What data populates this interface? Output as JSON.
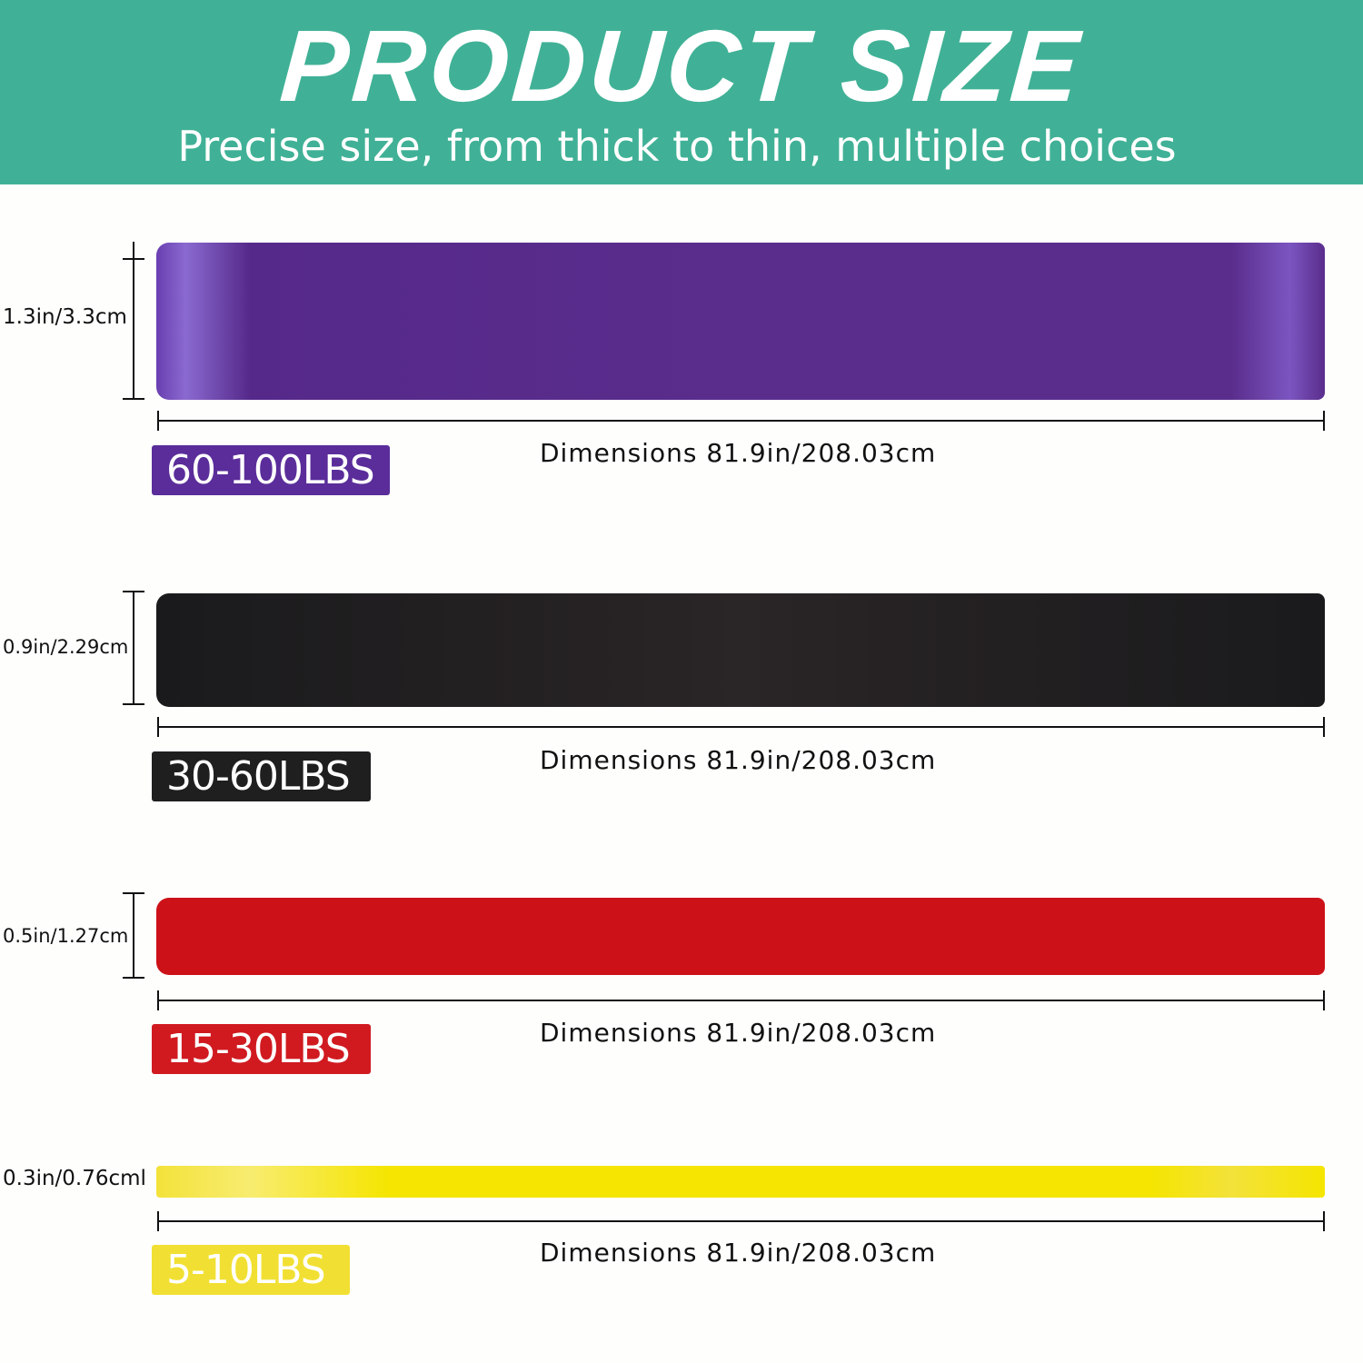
{
  "header": {
    "title": "PRODUCT SIZE",
    "subtitle": "Precise size, from thick to thin, multiple choices"
  },
  "bands": [
    {
      "thickness": "1.3in/3.3cm",
      "resistance": "60-100LBS",
      "dimensions": "Dimensions 81.9in/208.03cm",
      "color": "#5a2d8c"
    },
    {
      "thickness": "0.9in/2.29cm",
      "resistance": "30-60LBS",
      "dimensions": "Dimensions 81.9in/208.03cm",
      "color": "#231f20"
    },
    {
      "thickness": "0.5in/1.27cm",
      "resistance": "15-30LBS",
      "dimensions": "Dimensions 81.9in/208.03cm",
      "color": "#cc1218"
    },
    {
      "thickness": "0.3in/0.76cml",
      "resistance": "5-10LBS",
      "dimensions": "Dimensions 81.9in/208.03cm",
      "color": "#f5e500"
    }
  ],
  "colors": {
    "header": "#40b196",
    "badge_yellow": "#f1e033"
  }
}
